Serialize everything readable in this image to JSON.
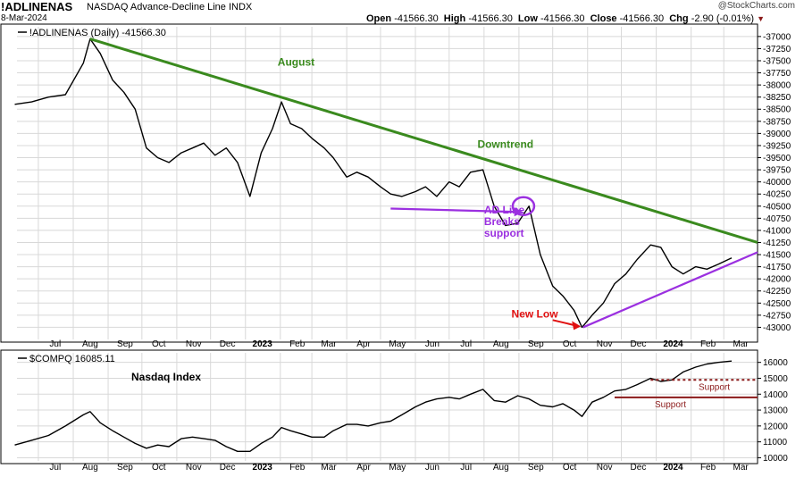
{
  "header": {
    "symbol": "!ADLINENAS",
    "description": "NASDAQ Advance-Decline Line INDX",
    "date": "8-Mar-2024",
    "watermark": "@StockCharts.com",
    "quote": {
      "open_label": "Open",
      "open": "-41566.30",
      "high_label": "High",
      "high": "-41566.30",
      "low_label": "Low",
      "low": "-41566.30",
      "close_label": "Close",
      "close": "-41566.30",
      "chg_label": "Chg",
      "chg": "-2.90 (-0.01%)"
    }
  },
  "colors": {
    "price_line": "#000000",
    "downtrend": "#3a8a1e",
    "support_purple": "#9b30e0",
    "new_low_arrow": "#e01010",
    "support_nasdaq": "#8b1a1a",
    "grid": "#d8d8d8"
  },
  "chart_data": [
    {
      "type": "line",
      "legend": "!ADLINENAS (Daily) -41566.30",
      "ylim": [
        -43250,
        -36800
      ],
      "ticks": [
        -37000,
        -37250,
        -37500,
        -37750,
        -38000,
        -38250,
        -38500,
        -38750,
        -39000,
        -39250,
        -39500,
        -39750,
        -40000,
        -40250,
        -40500,
        -40750,
        -41000,
        -41250,
        -41500,
        -41750,
        -42000,
        -42250,
        -42500,
        -42750,
        -43000
      ],
      "tick_labels": [
        "-37000",
        "-37250",
        "-37500",
        "-37750",
        "-38000",
        "-38250",
        "-38500",
        "-38750",
        "-39000",
        "-39250",
        "-39500",
        "-39750",
        "-40000",
        "-40250",
        "-40500",
        "-40750",
        "-41000",
        "-41250",
        "-41500",
        "-41750",
        "-42000",
        "-42250",
        "-42500",
        "-42750",
        "-43000"
      ],
      "x_months": [
        "2022-07",
        "2022-08",
        "2022-09",
        "2022-10",
        "2022-11",
        "2022-12",
        "2023-01",
        "2023-02",
        "2023-03",
        "2023-04",
        "2023-05",
        "2023-06",
        "2023-07",
        "2023-08",
        "2023-09",
        "2023-10",
        "2023-11",
        "2023-12",
        "2024-01",
        "2024-02",
        "2024-03"
      ],
      "x": [
        "2022-06-10",
        "2022-06-25",
        "2022-07-10",
        "2022-07-25",
        "2022-08-10",
        "2022-08-16",
        "2022-08-25",
        "2022-09-05",
        "2022-09-15",
        "2022-09-25",
        "2022-10-05",
        "2022-10-15",
        "2022-10-25",
        "2022-11-05",
        "2022-11-15",
        "2022-11-25",
        "2022-12-05",
        "2022-12-15",
        "2022-12-25",
        "2023-01-05",
        "2023-01-15",
        "2023-01-25",
        "2023-02-02",
        "2023-02-10",
        "2023-02-20",
        "2023-03-01",
        "2023-03-12",
        "2023-03-20",
        "2023-04-01",
        "2023-04-10",
        "2023-04-20",
        "2023-05-01",
        "2023-05-10",
        "2023-05-20",
        "2023-06-01",
        "2023-06-10",
        "2023-06-20",
        "2023-07-01",
        "2023-07-10",
        "2023-07-20",
        "2023-07-31",
        "2023-08-10",
        "2023-08-20",
        "2023-08-31",
        "2023-09-10",
        "2023-09-20",
        "2023-10-01",
        "2023-10-10",
        "2023-10-20",
        "2023-10-27",
        "2023-11-05",
        "2023-11-15",
        "2023-11-25",
        "2023-12-05",
        "2023-12-15",
        "2023-12-27",
        "2024-01-05",
        "2024-01-15",
        "2024-01-25",
        "2024-02-05",
        "2024-02-15",
        "2024-02-25",
        "2024-03-08"
      ],
      "y": [
        -38400,
        -38350,
        -38250,
        -38200,
        -37550,
        -37050,
        -37350,
        -37900,
        -38150,
        -38500,
        -39300,
        -39500,
        -39600,
        -39400,
        -39300,
        -39200,
        -39450,
        -39300,
        -39600,
        -40300,
        -39400,
        -38900,
        -38350,
        -38800,
        -38900,
        -39100,
        -39300,
        -39500,
        -39900,
        -39800,
        -39900,
        -40100,
        -40250,
        -40300,
        -40200,
        -40100,
        -40300,
        -40000,
        -40100,
        -39800,
        -39750,
        -40500,
        -40900,
        -40850,
        -40500,
        -41500,
        -42150,
        -42350,
        -42650,
        -43000,
        -42750,
        -42500,
        -42100,
        -41900,
        -41600,
        -41300,
        -41350,
        -41750,
        -41900,
        -41750,
        -41800,
        -41700,
        -41570
      ],
      "annotations": [
        {
          "text": "August",
          "type": "label",
          "x": "2023-02-15",
          "y": -37600
        },
        {
          "text": "Downtrend",
          "type": "label",
          "x": "2023-08-20",
          "y": -39300
        },
        {
          "text": "AD Line\nBreaks\nsupport",
          "type": "label",
          "x": "2023-08-01",
          "y": -40650
        },
        {
          "text": "New Low",
          "type": "label",
          "x": "2023-09-15",
          "y": -42800
        },
        {
          "text": "downtrend line",
          "type": "line",
          "x": [
            "2022-08-16",
            "2024-03-31"
          ],
          "y": [
            -37050,
            -41250
          ]
        },
        {
          "text": "support line",
          "type": "line",
          "x": [
            "2023-05-10",
            "2023-08-31"
          ],
          "y": [
            -40550,
            -40620
          ]
        },
        {
          "text": "uptrend line",
          "type": "line",
          "x": [
            "2023-10-28",
            "2024-03-31"
          ],
          "y": [
            -43000,
            -41450
          ]
        },
        {
          "text": "breakdown circle",
          "type": "circle",
          "x": "2023-09-05",
          "y": -40500
        },
        {
          "text": "new low arrow",
          "type": "arrow",
          "x": [
            "2023-10-01",
            "2023-10-26"
          ],
          "y": [
            -42850,
            -42980
          ]
        }
      ]
    },
    {
      "type": "line",
      "legend": "$COMPQ 16085.11",
      "title": "Nasdaq Index",
      "ylim": [
        9800,
        16600
      ],
      "ticks": [
        10000,
        11000,
        12000,
        13000,
        14000,
        15000,
        16000
      ],
      "tick_labels": [
        "10000",
        "11000",
        "12000",
        "13000",
        "14000",
        "15000",
        "16000"
      ],
      "x_months": [
        "2022-07",
        "2022-08",
        "2022-09",
        "2022-10",
        "2022-11",
        "2022-12",
        "2023-01",
        "2023-02",
        "2023-03",
        "2023-04",
        "2023-05",
        "2023-06",
        "2023-07",
        "2023-08",
        "2023-09",
        "2023-10",
        "2023-11",
        "2023-12",
        "2024-01",
        "2024-02",
        "2024-03"
      ],
      "x": [
        "2022-06-10",
        "2022-06-25",
        "2022-07-10",
        "2022-07-25",
        "2022-08-10",
        "2022-08-16",
        "2022-08-25",
        "2022-09-05",
        "2022-09-15",
        "2022-09-25",
        "2022-10-05",
        "2022-10-15",
        "2022-10-25",
        "2022-11-05",
        "2022-11-15",
        "2022-11-25",
        "2022-12-05",
        "2022-12-15",
        "2022-12-25",
        "2023-01-05",
        "2023-01-15",
        "2023-01-25",
        "2023-02-02",
        "2023-02-10",
        "2023-02-20",
        "2023-03-01",
        "2023-03-12",
        "2023-03-20",
        "2023-04-01",
        "2023-04-10",
        "2023-04-20",
        "2023-05-01",
        "2023-05-10",
        "2023-05-20",
        "2023-06-01",
        "2023-06-10",
        "2023-06-20",
        "2023-07-01",
        "2023-07-10",
        "2023-07-20",
        "2023-07-31",
        "2023-08-10",
        "2023-08-20",
        "2023-08-31",
        "2023-09-10",
        "2023-09-20",
        "2023-10-01",
        "2023-10-10",
        "2023-10-20",
        "2023-10-27",
        "2023-11-05",
        "2023-11-15",
        "2023-11-25",
        "2023-12-05",
        "2023-12-15",
        "2023-12-27",
        "2024-01-05",
        "2024-01-15",
        "2024-01-25",
        "2024-02-05",
        "2024-02-15",
        "2024-02-25",
        "2024-03-08"
      ],
      "y": [
        10800,
        11100,
        11400,
        12000,
        12700,
        12900,
        12200,
        11700,
        11300,
        10900,
        10600,
        10800,
        10700,
        11200,
        11300,
        11200,
        11100,
        10700,
        10400,
        10400,
        10900,
        11300,
        11900,
        11700,
        11500,
        11300,
        11300,
        11700,
        12100,
        12100,
        12000,
        12200,
        12300,
        12700,
        13200,
        13500,
        13700,
        13800,
        13700,
        14000,
        14300,
        13600,
        13500,
        13900,
        13700,
        13300,
        13200,
        13400,
        13000,
        12600,
        13500,
        13800,
        14200,
        14300,
        14600,
        15000,
        14800,
        14900,
        15400,
        15700,
        15900,
        16000,
        16085
      ],
      "annotations": [
        {
          "text": "Support",
          "type": "level",
          "x": [
            "2023-11-25",
            "2024-03-31"
          ],
          "y": 13800
        },
        {
          "text": "Support",
          "type": "level",
          "x": [
            "2023-12-27",
            "2024-03-31"
          ],
          "y": 14900
        }
      ]
    }
  ]
}
